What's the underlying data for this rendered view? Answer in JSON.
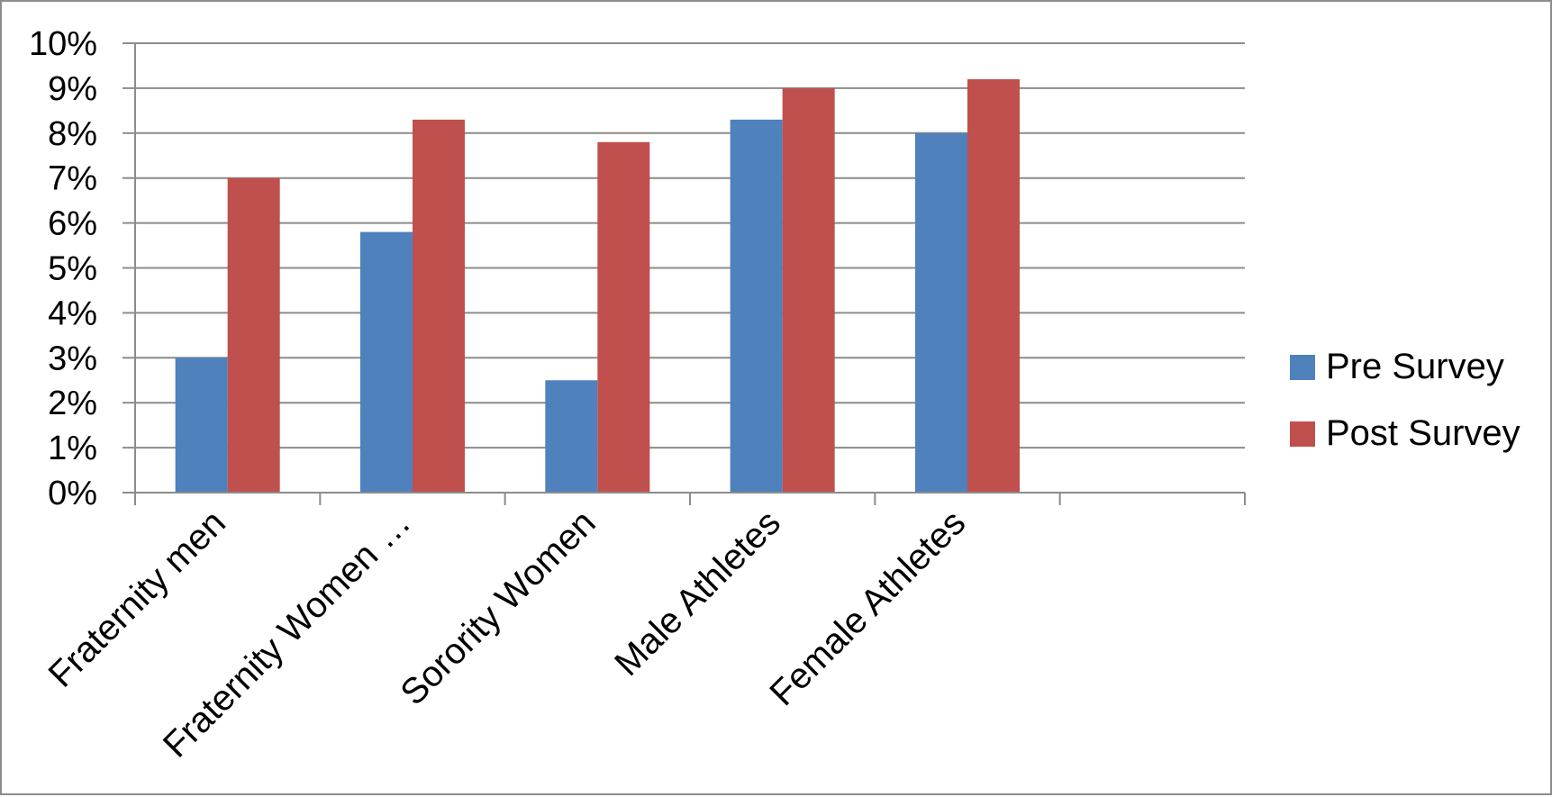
{
  "chart_data": {
    "type": "bar",
    "title": "",
    "xlabel": "",
    "ylabel": "",
    "categories": [
      "Fraternity men",
      "Fraternity Women …",
      "Sorority Women",
      "Male Athletes",
      "Female Athletes",
      ""
    ],
    "series": [
      {
        "name": "Pre Survey",
        "color": "#4f81bd",
        "values": [
          3.0,
          5.8,
          2.5,
          8.3,
          8.0,
          null
        ]
      },
      {
        "name": "Post Survey",
        "color": "#c0504d",
        "values": [
          7.0,
          8.3,
          7.8,
          9.0,
          9.2,
          null
        ]
      }
    ],
    "ylim": [
      0,
      10
    ],
    "yticks": [
      {
        "value": 0,
        "label": "0%"
      },
      {
        "value": 1,
        "label": "1%"
      },
      {
        "value": 2,
        "label": "2%"
      },
      {
        "value": 3,
        "label": "3%"
      },
      {
        "value": 4,
        "label": "4%"
      },
      {
        "value": 5,
        "label": "5%"
      },
      {
        "value": 6,
        "label": "6%"
      },
      {
        "value": 7,
        "label": "7%"
      },
      {
        "value": 8,
        "label": "8%"
      },
      {
        "value": 9,
        "label": "9%"
      },
      {
        "value": 10,
        "label": "10%"
      }
    ],
    "grid": true,
    "legend_position": "right",
    "colors": {
      "gridline": "#8c8c8c",
      "axis": "#8c8c8c",
      "frame": "#8c8c8c"
    }
  }
}
